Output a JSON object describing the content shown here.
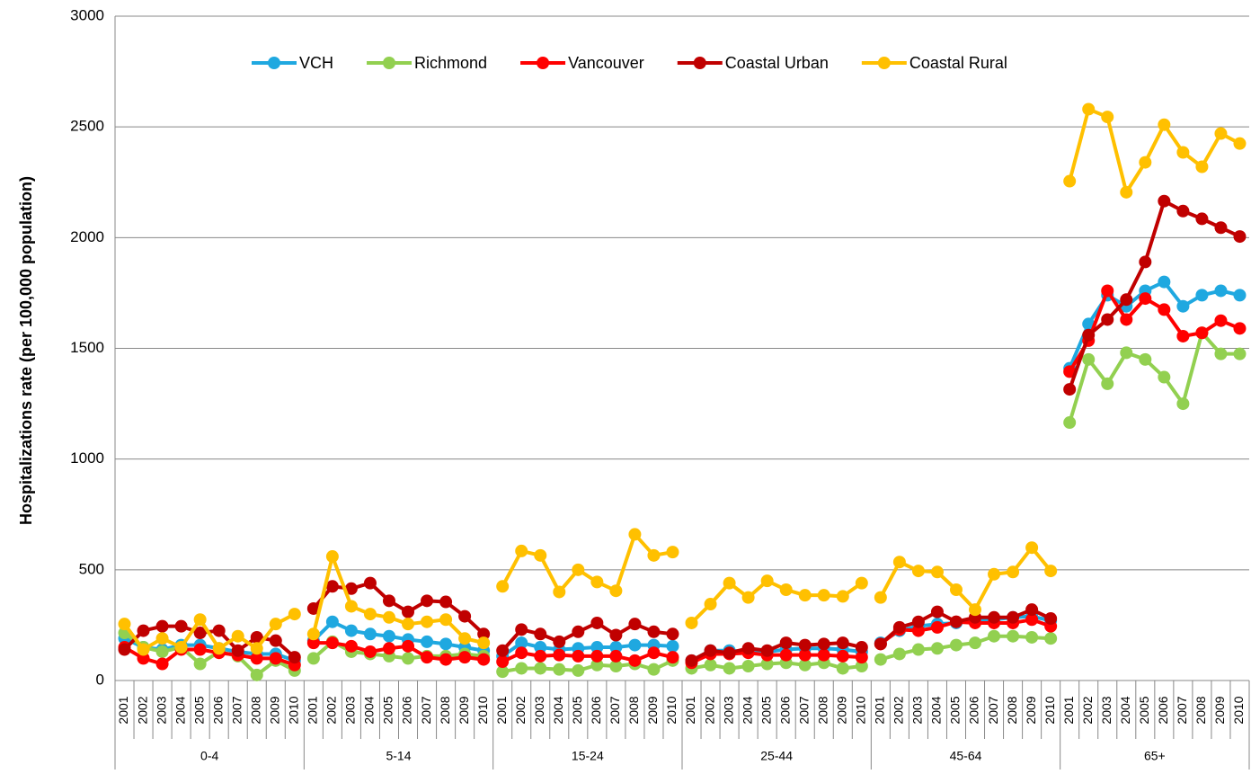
{
  "chart_data": {
    "type": "line",
    "y_label": "Hospitalizations rate (per 100,000 population)",
    "groups": [
      "0-4",
      "5-14",
      "15-24",
      "25-44",
      "45-64",
      "65+"
    ],
    "categories": [
      "2001",
      "2002",
      "2003",
      "2004",
      "2005",
      "2006",
      "2007",
      "2008",
      "2009",
      "2010",
      "2001",
      "2002",
      "2003",
      "2004",
      "2005",
      "2006",
      "2007",
      "2008",
      "2009",
      "2010",
      "2001",
      "2002",
      "2003",
      "2004",
      "2005",
      "2006",
      "2007",
      "2008",
      "2009",
      "2010",
      "2001",
      "2002",
      "2003",
      "2004",
      "2005",
      "2006",
      "2007",
      "2008",
      "2009",
      "2010",
      "2001",
      "2002",
      "2003",
      "2004",
      "2005",
      "2006",
      "2007",
      "2008",
      "2009",
      "2010",
      "2001",
      "2002",
      "2003",
      "2004",
      "2005",
      "2006",
      "2007",
      "2008",
      "2009",
      "2010"
    ],
    "series": [
      {
        "name": "VCH",
        "color": "#1fa8e0",
        "values": [
          190,
          150,
          140,
          160,
          160,
          145,
          130,
          120,
          120,
          90,
          180,
          265,
          225,
          210,
          200,
          185,
          175,
          165,
          150,
          135,
          110,
          170,
          150,
          140,
          145,
          150,
          150,
          160,
          160,
          155,
          90,
          135,
          135,
          130,
          130,
          140,
          145,
          145,
          140,
          130,
          170,
          225,
          245,
          255,
          260,
          270,
          275,
          285,
          290,
          270,
          1410,
          1610,
          1740,
          1690,
          1760,
          1800,
          1690,
          1740,
          1760,
          1740
        ]
      },
      {
        "name": "Richmond",
        "color": "#92d050",
        "values": [
          215,
          150,
          130,
          150,
          75,
          130,
          110,
          25,
          90,
          45,
          100,
          175,
          130,
          120,
          110,
          100,
          110,
          110,
          120,
          110,
          40,
          55,
          55,
          50,
          45,
          70,
          65,
          75,
          50,
          90,
          55,
          70,
          55,
          65,
          75,
          80,
          70,
          80,
          55,
          65,
          95,
          120,
          140,
          145,
          160,
          170,
          200,
          200,
          195,
          190,
          1165,
          1450,
          1340,
          1480,
          1450,
          1370,
          1250,
          1570,
          1475,
          1475
        ]
      },
      {
        "name": "Vancouver",
        "color": "#ff0000",
        "values": [
          150,
          100,
          75,
          140,
          140,
          125,
          115,
          100,
          100,
          70,
          170,
          170,
          155,
          130,
          145,
          155,
          105,
          95,
          105,
          95,
          85,
          125,
          110,
          115,
          110,
          110,
          110,
          90,
          125,
          105,
          80,
          120,
          120,
          125,
          115,
          115,
          115,
          115,
          110,
          105,
          165,
          230,
          225,
          240,
          265,
          260,
          260,
          260,
          275,
          245,
          1395,
          1535,
          1760,
          1630,
          1725,
          1675,
          1555,
          1570,
          1625,
          1590
        ]
      },
      {
        "name": "Coastal Urban",
        "color": "#c00000",
        "values": [
          140,
          225,
          245,
          245,
          215,
          225,
          135,
          195,
          180,
          105,
          325,
          425,
          415,
          440,
          360,
          310,
          360,
          355,
          290,
          210,
          135,
          230,
          210,
          175,
          220,
          260,
          205,
          255,
          220,
          210,
          90,
          135,
          125,
          145,
          135,
          170,
          160,
          165,
          170,
          150,
          165,
          240,
          265,
          310,
          265,
          285,
          285,
          285,
          320,
          280,
          1315,
          1560,
          1630,
          1720,
          1890,
          2165,
          2120,
          2085,
          2045,
          2005
        ]
      },
      {
        "name": "Coastal Rural",
        "color": "#ffc000",
        "values": [
          255,
          140,
          190,
          150,
          275,
          145,
          200,
          145,
          255,
          300,
          210,
          560,
          335,
          300,
          285,
          255,
          265,
          275,
          190,
          170,
          425,
          585,
          565,
          400,
          500,
          445,
          405,
          660,
          565,
          580,
          260,
          345,
          440,
          375,
          450,
          410,
          385,
          385,
          380,
          440,
          375,
          535,
          495,
          490,
          410,
          320,
          480,
          490,
          600,
          495,
          2255,
          2580,
          2545,
          2205,
          2340,
          2510,
          2385,
          2320,
          2470,
          2425
        ]
      }
    ],
    "ylim": [
      0,
      3000
    ],
    "yticks": [
      0,
      500,
      1000,
      1500,
      2000,
      2500,
      3000
    ],
    "grid": true
  }
}
